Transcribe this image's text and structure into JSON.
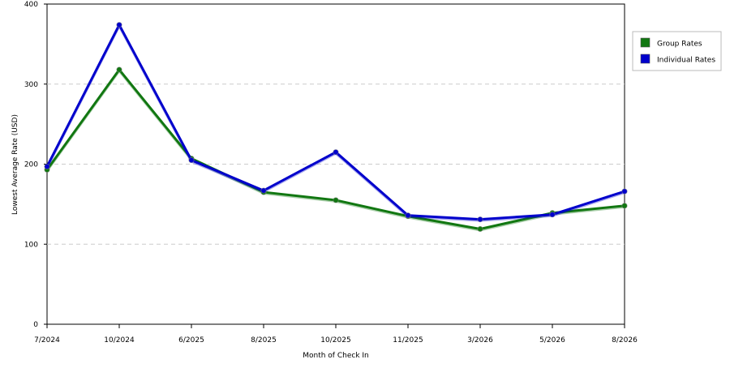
{
  "chart_data": {
    "type": "line",
    "title": "",
    "xlabel": "Month of Check In",
    "ylabel": "Lowest Average Rate (USD)",
    "categories": [
      "7/2024",
      "10/2024",
      "6/2025",
      "8/2025",
      "10/2025",
      "11/2025",
      "3/2026",
      "5/2026",
      "8/2026"
    ],
    "ylim": [
      0,
      400
    ],
    "yticks": [
      0,
      100,
      200,
      300,
      400
    ],
    "grid": true,
    "legend_position": "right",
    "series": [
      {
        "name": "Group Rates",
        "color": "#117711",
        "values": [
          193,
          318,
          207,
          165,
          155,
          135,
          119,
          139,
          148
        ]
      },
      {
        "name": "Individual Rates",
        "color": "#0000cc",
        "values": [
          197,
          374,
          205,
          167,
          215,
          136,
          131,
          137,
          166
        ]
      }
    ]
  }
}
